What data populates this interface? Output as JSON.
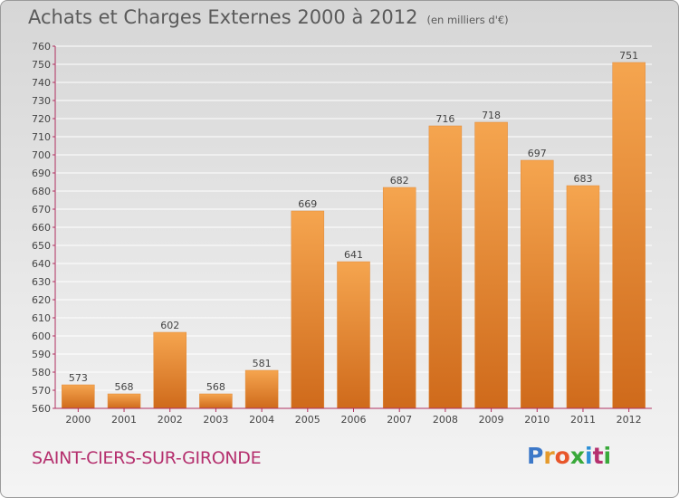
{
  "title": "Achats et Charges Externes 2000 à 2012",
  "subtitle": "(en milliers d'€)",
  "place_name": "SAINT-CIERS-SUR-GIRONDE",
  "logo": {
    "letters": [
      "P",
      "r",
      "o",
      "x",
      "i",
      "t",
      "i"
    ],
    "colors": [
      "#3c78c8",
      "#e59a2b",
      "#e8562a",
      "#39a93a",
      "#2c8fd6",
      "#b5306e",
      "#39a93a"
    ]
  },
  "colors": {
    "bar_light": "#f5a54f",
    "bar_dark": "#cf6a1b",
    "axis": "#b03060"
  },
  "chart_data": {
    "type": "bar",
    "categories": [
      "2000",
      "2001",
      "2002",
      "2003",
      "2004",
      "2005",
      "2006",
      "2007",
      "2008",
      "2009",
      "2010",
      "2011",
      "2012"
    ],
    "values": [
      573,
      568,
      602,
      568,
      581,
      669,
      641,
      682,
      716,
      718,
      697,
      683,
      751
    ],
    "title": "Achats et Charges Externes 2000 à 2012",
    "subtitle": "(en milliers d'€)",
    "xlabel": "",
    "ylabel": "",
    "ylim": [
      560,
      760
    ],
    "yticks": [
      560,
      570,
      580,
      590,
      600,
      610,
      620,
      630,
      640,
      650,
      660,
      670,
      680,
      690,
      700,
      710,
      720,
      730,
      740,
      750,
      760
    ],
    "grid": true
  }
}
